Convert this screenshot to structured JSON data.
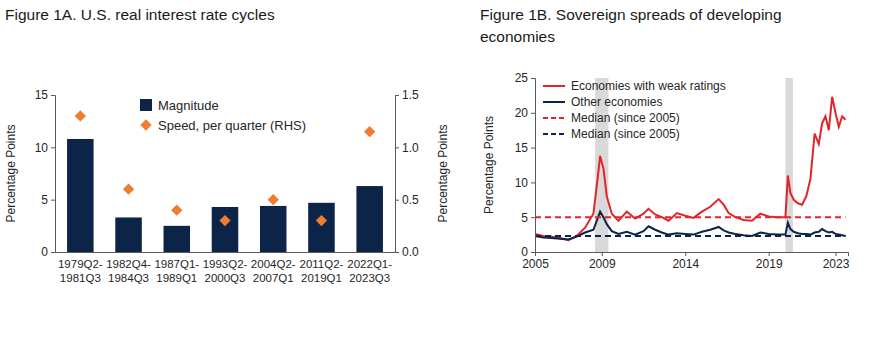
{
  "chart_data": [
    {
      "type": "bar",
      "title": "Figure 1A. U.S. real interest rate cycles",
      "categories": [
        "1979Q2-1981Q3",
        "1982Q4-1984Q3",
        "1987Q1-1989Q1",
        "1993Q2-2000Q3",
        "2004Q2-2007Q1",
        "2011Q2-2019Q1",
        "2022Q1-2023Q3"
      ],
      "series": [
        {
          "name": "Magnitude",
          "type": "bar",
          "color": "#0b2447",
          "values": [
            10.8,
            3.3,
            2.5,
            4.3,
            4.4,
            4.7,
            6.3
          ]
        },
        {
          "name": "Speed, per quarter (RHS)",
          "type": "scatter",
          "marker": "diamond",
          "color": "#ed7d31",
          "axis": "y2",
          "values": [
            1.3,
            0.6,
            0.4,
            0.3,
            0.5,
            0.3,
            1.15
          ]
        }
      ],
      "y_label": "Percentage Points",
      "y2_label": "Percentage Points",
      "ylim": [
        0,
        15
      ],
      "yticks": [
        0,
        5,
        10,
        15
      ],
      "y2lim": [
        0,
        1.5
      ],
      "y2ticks": [
        {
          "value": 0,
          "label": "0.0"
        },
        0.5,
        {
          "value": 1,
          "label": "1.0"
        },
        1.5
      ],
      "grid": false,
      "legend": "top-left"
    },
    {
      "type": "line",
      "title": "Figure 1B. Sovereign spreads of developing economies",
      "x": [
        2005,
        2005.5,
        2006,
        2006.5,
        2007,
        2007.5,
        2008,
        2008.5,
        2008.75,
        2008.9,
        2009.1,
        2009.3,
        2009.6,
        2010,
        2010.5,
        2011,
        2011.5,
        2011.8,
        2012.2,
        2012.6,
        2013,
        2013.5,
        2014,
        2014.5,
        2015,
        2015.5,
        2016,
        2016.3,
        2016.6,
        2017,
        2017.5,
        2018,
        2018.5,
        2019,
        2019.5,
        2020,
        2020.15,
        2020.3,
        2020.5,
        2020.75,
        2021,
        2021.25,
        2021.5,
        2021.75,
        2022,
        2022.2,
        2022.4,
        2022.6,
        2022.8,
        2023,
        2023.2,
        2023.4,
        2023.6
      ],
      "series": [
        {
          "name": "Economies with weak ratings",
          "color": "#e3242b",
          "line_style": "solid",
          "values": [
            2.6,
            2.3,
            2.2,
            2.0,
            1.7,
            2.3,
            3.5,
            5.5,
            10.5,
            13.8,
            12.0,
            8.0,
            5.5,
            4.5,
            5.8,
            4.8,
            5.5,
            6.2,
            5.4,
            5.0,
            4.5,
            5.6,
            5.2,
            4.9,
            5.8,
            6.5,
            7.6,
            6.8,
            5.6,
            5.0,
            4.6,
            4.5,
            5.5,
            5.1,
            5.0,
            5.0,
            11.0,
            8.5,
            7.5,
            7.0,
            6.8,
            8.0,
            10.5,
            17.0,
            15.5,
            18.5,
            19.5,
            17.5,
            22.3,
            20.0,
            18.0,
            19.5,
            19.0
          ]
        },
        {
          "name": "Other economies",
          "color": "#0b2447",
          "line_style": "solid",
          "values": [
            2.3,
            2.1,
            2.0,
            1.9,
            1.8,
            2.2,
            2.8,
            3.2,
            4.8,
            5.8,
            5.0,
            4.0,
            3.0,
            2.6,
            2.9,
            2.5,
            3.0,
            3.7,
            3.2,
            2.8,
            2.5,
            2.7,
            2.6,
            2.5,
            2.9,
            3.2,
            3.6,
            3.1,
            2.8,
            2.6,
            2.4,
            2.3,
            2.8,
            2.6,
            2.5,
            2.5,
            4.2,
            3.3,
            2.9,
            2.7,
            2.6,
            2.6,
            2.5,
            2.8,
            2.9,
            3.3,
            3.0,
            2.8,
            2.9,
            2.6,
            2.5,
            2.4,
            2.3
          ]
        },
        {
          "name": "Median (since 2005)",
          "color": "#e3242b",
          "line_style": "dashed",
          "values": [
            5,
            5,
            5,
            5,
            5,
            5,
            5,
            5,
            5,
            5,
            5,
            5,
            5,
            5,
            5,
            5,
            5,
            5,
            5,
            5,
            5,
            5,
            5,
            5,
            5,
            5,
            5,
            5,
            5,
            5,
            5,
            5,
            5,
            5,
            5,
            5,
            5,
            5,
            5,
            5,
            5,
            5,
            5,
            5,
            5,
            5,
            5,
            5,
            5,
            5,
            5,
            5,
            5
          ]
        },
        {
          "name": "Median (since 2005)",
          "color": "#0b2447",
          "line_style": "dashed",
          "values": [
            2.3,
            2.3,
            2.3,
            2.3,
            2.3,
            2.3,
            2.3,
            2.3,
            2.3,
            2.3,
            2.3,
            2.3,
            2.3,
            2.3,
            2.3,
            2.3,
            2.3,
            2.3,
            2.3,
            2.3,
            2.3,
            2.3,
            2.3,
            2.3,
            2.3,
            2.3,
            2.3,
            2.3,
            2.3,
            2.3,
            2.3,
            2.3,
            2.3,
            2.3,
            2.3,
            2.3,
            2.3,
            2.3,
            2.3,
            2.3,
            2.3,
            2.3,
            2.3,
            2.3,
            2.3,
            2.3,
            2.3,
            2.3,
            2.3,
            2.3,
            2.3,
            2.3,
            2.3
          ]
        }
      ],
      "y_label": "Percentage Points",
      "xlim": [
        2005,
        2023.75
      ],
      "xticks": [
        2005,
        2009,
        2014,
        2019,
        2023
      ],
      "ylim": [
        0,
        25
      ],
      "yticks": [
        0,
        5,
        10,
        15,
        20,
        25
      ],
      "shaded_x": [
        [
          2008.6,
          2009.4
        ],
        [
          2020.0,
          2020.45
        ]
      ],
      "grid": false,
      "legend": "top-left"
    }
  ]
}
